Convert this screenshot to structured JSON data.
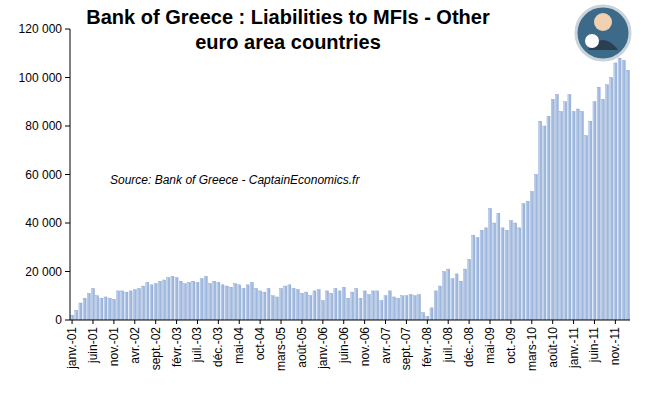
{
  "chart_data": {
    "type": "bar",
    "title": "Bank of Greece : Liabilities to MFIs - Other euro area countries",
    "annotation": "Source: Bank of Greece - CaptainEconomics.fr",
    "categories": [
      "janv.-01",
      null,
      null,
      null,
      null,
      "juin-01",
      null,
      null,
      null,
      null,
      "nov.-01",
      null,
      null,
      null,
      null,
      "avr.-02",
      null,
      null,
      null,
      null,
      "sept.-02",
      null,
      null,
      null,
      null,
      "févr.-03",
      null,
      null,
      null,
      null,
      "juil.-03",
      null,
      null,
      null,
      null,
      "déc.-03",
      null,
      null,
      null,
      null,
      "mai-04",
      null,
      null,
      null,
      null,
      "oct-04",
      null,
      null,
      null,
      null,
      "mars-05",
      null,
      null,
      null,
      null,
      "août-05",
      null,
      null,
      null,
      null,
      "janv.-06",
      null,
      null,
      null,
      null,
      "juin-06",
      null,
      null,
      null,
      null,
      "nov.-06",
      null,
      null,
      null,
      null,
      "avr.-07",
      null,
      null,
      null,
      null,
      "sept.-07",
      null,
      null,
      null,
      null,
      "févr.-08",
      null,
      null,
      null,
      null,
      "juil.-08",
      null,
      null,
      null,
      null,
      "déc.-08",
      null,
      null,
      null,
      null,
      "mai-09",
      null,
      null,
      null,
      null,
      "oct.-09",
      null,
      null,
      null,
      null,
      "mars-10",
      null,
      null,
      null,
      null,
      "août-10",
      null,
      null,
      null,
      null,
      "janv.-11",
      null,
      null,
      null,
      null,
      "juin-11",
      null,
      null,
      null,
      null,
      "nov.-11",
      null,
      null,
      null
    ],
    "values": [
      2000,
      4000,
      7000,
      9000,
      11000,
      13000,
      10000,
      9000,
      9500,
      9000,
      8500,
      12000,
      12000,
      11500,
      12000,
      12500,
      13000,
      14000,
      15500,
      14500,
      15000,
      16000,
      16500,
      17500,
      18000,
      17500,
      16000,
      15000,
      15500,
      16000,
      15500,
      17000,
      18000,
      15000,
      16000,
      15500,
      14500,
      14000,
      13500,
      15000,
      14500,
      13000,
      14500,
      15500,
      13000,
      12000,
      11500,
      13000,
      10000,
      9500,
      13000,
      14000,
      14500,
      13000,
      12500,
      11000,
      11500,
      10000,
      12000,
      12500,
      8000,
      12000,
      11000,
      13000,
      12000,
      13500,
      9000,
      11500,
      13000,
      9000,
      12000,
      10500,
      12000,
      12000,
      8000,
      10000,
      12000,
      9500,
      9000,
      10000,
      10000,
      10500,
      10000,
      10500,
      3000,
      1500,
      5000,
      12000,
      14000,
      20000,
      21000,
      17000,
      19000,
      16000,
      21000,
      25000,
      35000,
      34000,
      37000,
      38000,
      46000,
      40000,
      44000,
      38000,
      37000,
      41000,
      40000,
      38000,
      48000,
      49000,
      53000,
      60000,
      82000,
      80000,
      84000,
      91000,
      93000,
      86000,
      90000,
      93000,
      86000,
      87000,
      86000,
      76000,
      82000,
      90000,
      96000,
      91000,
      97000,
      100000,
      106000,
      108000,
      107000,
      103000
    ],
    "color": "#9fb8e0",
    "ylim": [
      0,
      120000
    ],
    "yticks": [
      0,
      {
        "value": 20000,
        "label": "20 000"
      },
      {
        "value": 40000,
        "label": "40 000"
      },
      {
        "value": 60000,
        "label": "60 000"
      },
      {
        "value": 80000,
        "label": "80 000"
      },
      {
        "value": 100000,
        "label": "100 000"
      },
      {
        "value": 120000,
        "label": "120 000"
      }
    ],
    "grid": false
  }
}
